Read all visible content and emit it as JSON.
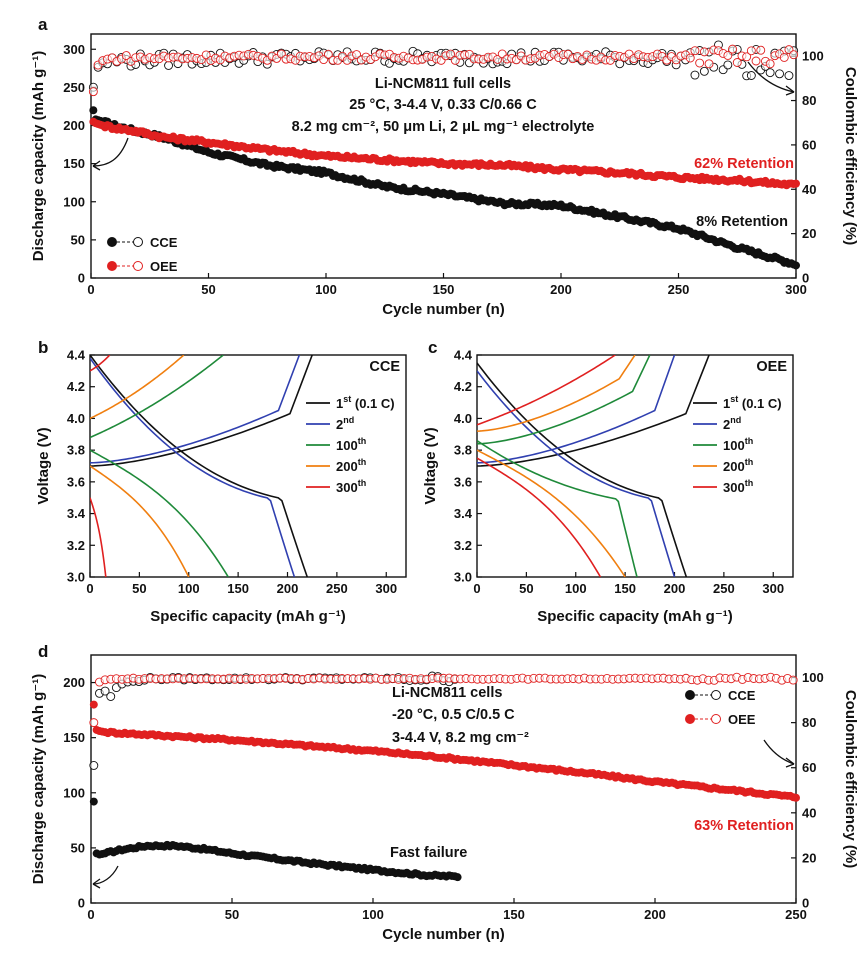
{
  "colors": {
    "cce": "#111111",
    "oee": "#e02020",
    "cycle100": "#1f8a3a",
    "cycle200": "#f07f10",
    "cycle2": "#3040b0"
  },
  "chart_data": [
    {
      "id": "a",
      "type": "scatter",
      "panel_label": "a",
      "xlabel": "Cycle number (n)",
      "ylabel": "Discharge capacity (mAh g⁻¹)",
      "y2label": "Coulombic efficiency (%)",
      "xlim": [
        0,
        300
      ],
      "ylim": [
        0,
        320
      ],
      "y2lim": [
        0,
        110
      ],
      "xticks": [
        0,
        50,
        100,
        150,
        200,
        250,
        300
      ],
      "yticks": [
        0,
        50,
        100,
        150,
        200,
        250,
        300
      ],
      "y2ticks": [
        0,
        20,
        40,
        60,
        80,
        100
      ],
      "series": [
        {
          "name": "CCE",
          "kind": "capacity",
          "x": [
            1,
            2,
            5,
            10,
            20,
            30,
            50,
            75,
            100,
            125,
            150,
            175,
            200,
            225,
            250,
            275,
            300
          ],
          "values": [
            220,
            208,
            205,
            200,
            192,
            185,
            165,
            148,
            138,
            120,
            110,
            98,
            95,
            80,
            65,
            40,
            18
          ]
        },
        {
          "name": "OEE",
          "kind": "capacity",
          "x": [
            1,
            2,
            5,
            10,
            20,
            30,
            50,
            75,
            100,
            125,
            150,
            175,
            200,
            225,
            250,
            275,
            300
          ],
          "values": [
            205,
            203,
            200,
            197,
            192,
            185,
            178,
            168,
            160,
            155,
            150,
            148,
            142,
            138,
            132,
            128,
            122
          ]
        },
        {
          "name": "CCE CE",
          "kind": "ce",
          "x": [
            1,
            2,
            3,
            5,
            10,
            50,
            100,
            150,
            200,
            250,
            270,
            280,
            290,
            300
          ],
          "values": [
            86,
            92,
            95,
            97,
            98,
            99,
            99.5,
            99.5,
            99.5,
            99,
            98,
            96,
            95,
            97
          ]
        },
        {
          "name": "OEE CE",
          "kind": "ce",
          "x": [
            1,
            2,
            3,
            5,
            10,
            50,
            100,
            150,
            200,
            250,
            300
          ],
          "values": [
            84,
            90,
            96,
            98,
            99,
            99.5,
            99.6,
            99.6,
            99.6,
            99.6,
            99.8
          ]
        }
      ],
      "annotations": {
        "title1": "Li-NCM811 full cells",
        "title2": "25 °C, 3-4.4 V, 0.33 C/0.66 C",
        "title3": "8.2 mg cm⁻², 50 μm Li, 2 μL mg⁻¹ electrolyte",
        "oee_retention": "62% Retention",
        "cce_retention": "8% Retention"
      },
      "legend": [
        "CCE",
        "OEE"
      ]
    },
    {
      "id": "b",
      "type": "line",
      "panel_label": "b",
      "corner_label": "CCE",
      "xlabel": "Specific capacity (mAh g⁻¹)",
      "ylabel": "Voltage (V)",
      "xlim": [
        0,
        320
      ],
      "ylim": [
        3.0,
        4.4
      ],
      "xticks": [
        0,
        50,
        100,
        150,
        200,
        250,
        300
      ],
      "yticks": [
        3.0,
        3.2,
        3.4,
        3.6,
        3.8,
        4.0,
        4.2,
        4.4
      ],
      "series": [
        {
          "name": "1st (0.1 C)",
          "charge_capacity": 225,
          "discharge_capacity": 220,
          "charge_start": 3.7,
          "discharge_start": 4.4
        },
        {
          "name": "2nd",
          "charge_capacity": 212,
          "discharge_capacity": 207,
          "charge_start": 3.72,
          "discharge_start": 4.38
        },
        {
          "name": "100th",
          "charge_capacity": 135,
          "discharge_capacity": 140,
          "charge_start": 3.88,
          "discharge_start": 3.8
        },
        {
          "name": "200th",
          "charge_capacity": 95,
          "discharge_capacity": 100,
          "charge_start": 4.0,
          "discharge_start": 3.7
        },
        {
          "name": "300th",
          "charge_capacity": 20,
          "discharge_capacity": 16,
          "charge_start": 4.3,
          "discharge_start": 3.5
        }
      ]
    },
    {
      "id": "c",
      "type": "line",
      "panel_label": "c",
      "corner_label": "OEE",
      "xlabel": "Specific capacity (mAh g⁻¹)",
      "ylabel": "Voltage (V)",
      "xlim": [
        0,
        320
      ],
      "ylim": [
        3.0,
        4.4
      ],
      "xticks": [
        0,
        50,
        100,
        150,
        200,
        250,
        300
      ],
      "yticks": [
        3.0,
        3.2,
        3.4,
        3.6,
        3.8,
        4.0,
        4.2,
        4.4
      ],
      "series": [
        {
          "name": "1st (0.1 C)",
          "charge_capacity": 235,
          "discharge_capacity": 212,
          "charge_start": 3.7,
          "discharge_start": 4.35
        },
        {
          "name": "2nd",
          "charge_capacity": 200,
          "discharge_capacity": 200,
          "charge_start": 3.72,
          "discharge_start": 4.3
        },
        {
          "name": "100th",
          "charge_capacity": 175,
          "discharge_capacity": 162,
          "charge_start": 3.84,
          "discharge_start": 3.86
        },
        {
          "name": "200th",
          "charge_capacity": 160,
          "discharge_capacity": 150,
          "charge_start": 3.92,
          "discharge_start": 3.8
        },
        {
          "name": "300th",
          "charge_capacity": 140,
          "discharge_capacity": 125,
          "charge_start": 3.96,
          "discharge_start": 3.75
        }
      ]
    },
    {
      "id": "d",
      "type": "scatter",
      "panel_label": "d",
      "xlabel": "Cycle number (n)",
      "ylabel": "Discharge capacity (mAh g⁻¹)",
      "y2label": "Coulombic efficiency (%)",
      "xlim": [
        0,
        250
      ],
      "ylim": [
        0,
        225
      ],
      "y2lim": [
        0,
        110
      ],
      "xticks": [
        0,
        50,
        100,
        150,
        200,
        250
      ],
      "yticks": [
        0,
        50,
        100,
        150,
        200
      ],
      "y2ticks": [
        0,
        20,
        40,
        60,
        80,
        100
      ],
      "series": [
        {
          "name": "CCE",
          "kind": "capacity",
          "x": [
            1,
            2,
            3,
            5,
            10,
            20,
            30,
            40,
            50,
            75,
            100,
            120,
            130
          ],
          "values": [
            92,
            45,
            44,
            45,
            48,
            52,
            52,
            49,
            45,
            37,
            30,
            25,
            24
          ]
        },
        {
          "name": "OEE",
          "kind": "capacity",
          "x": [
            1,
            2,
            3,
            5,
            25,
            50,
            75,
            100,
            125,
            150,
            175,
            200,
            225,
            250
          ],
          "values": [
            180,
            157,
            156,
            155,
            152,
            148,
            143,
            138,
            132,
            125,
            118,
            110,
            103,
            96
          ]
        },
        {
          "name": "CCE CE",
          "kind": "ce",
          "x": [
            1,
            2,
            3,
            4,
            6,
            10,
            20,
            50,
            100,
            130
          ],
          "values": [
            61,
            70,
            93,
            98,
            90,
            97,
            99.5,
            99.5,
            99.5,
            99.5
          ]
        },
        {
          "name": "OEE CE",
          "kind": "ce",
          "x": [
            1,
            2,
            3,
            5,
            10,
            50,
            100,
            150,
            200,
            250
          ],
          "values": [
            80,
            95,
            98,
            99,
            99.5,
            99.5,
            99.5,
            99.5,
            99.5,
            99.5
          ]
        }
      ],
      "annotations": {
        "title1": "Li-NCM811 cells",
        "title2": "-20 °C, 0.5 C/0.5 C",
        "title3": "3-4.4 V, 8.2 mg cm⁻²",
        "oee_retention": "63% Retention",
        "fast_failure": "Fast failure"
      },
      "legend": [
        "CCE",
        "OEE"
      ]
    }
  ]
}
